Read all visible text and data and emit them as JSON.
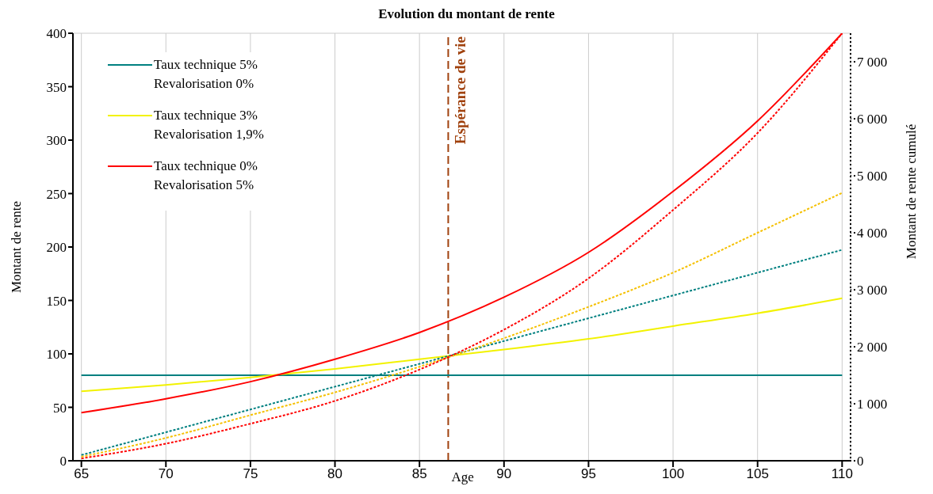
{
  "chart_data": {
    "type": "line",
    "title": "Evolution du montant de rente",
    "xlabel": "Age",
    "ylabel": "Montant de rente",
    "y2label": "Montant de rente cumulé",
    "x": [
      65,
      70,
      75,
      80,
      85,
      90,
      95,
      100,
      105,
      110
    ],
    "series": [
      {
        "name": "Taux technique 5%\nRevalorisation 0%",
        "color": "#008080",
        "line_style": "solid",
        "values": [
          80,
          80,
          80,
          80,
          80,
          80,
          80,
          80,
          80,
          80
        ]
      },
      {
        "name": "Taux technique 3%\nRevalorisation 1,9%",
        "color": "#f2f200",
        "line_style": "solid",
        "values": [
          65,
          71,
          78,
          86,
          95,
          104,
          114,
          126,
          138,
          152
        ]
      },
      {
        "name": "Taux technique 0%\nRevalorisation 5%",
        "color": "#ff0000",
        "line_style": "solid",
        "values": [
          45,
          58,
          74,
          95,
          120,
          153,
          195,
          252,
          318,
          400
        ]
      },
      {
        "color": "#008080",
        "line_style": "dotted",
        "axis": "y2",
        "values": [
          100,
          500,
          900,
          1300,
          1700,
          2100,
          2500,
          2900,
          3300,
          3700
        ]
      },
      {
        "color": "#f5c000",
        "line_style": "dotted",
        "axis": "y2",
        "values": [
          70,
          400,
          800,
          1200,
          1650,
          2150,
          2700,
          3300,
          4000,
          4700
        ]
      },
      {
        "color": "#ff0000",
        "line_style": "dotted",
        "axis": "y2",
        "values": [
          40,
          300,
          650,
          1050,
          1600,
          2300,
          3200,
          4400,
          5750,
          7500
        ]
      }
    ],
    "xlim": [
      64.5,
      110.5
    ],
    "xticks": [
      65,
      70,
      75,
      80,
      85,
      90,
      95,
      100,
      105,
      110
    ],
    "ylim": [
      0,
      400
    ],
    "yticks": [
      0,
      50,
      100,
      150,
      200,
      250,
      300,
      350,
      400
    ],
    "y2lim": [
      0,
      7500
    ],
    "y2ticks": [
      0,
      {
        "value": 1000,
        "label": "1 000"
      },
      {
        "value": 2000,
        "label": "2 000"
      },
      {
        "value": 3000,
        "label": "3 000"
      },
      {
        "value": 4000,
        "label": "4 000"
      },
      {
        "value": 5000,
        "label": "5 000"
      },
      {
        "value": 6000,
        "label": "6 000"
      },
      {
        "value": 7000,
        "label": "7 000"
      }
    ],
    "ref_lines": [
      {
        "axis": "x",
        "value": 86.7,
        "label": "Espérance de vie",
        "color": "#a0410d",
        "line_style": "dashed"
      }
    ],
    "grid": true,
    "legend": "top left",
    "marker": "none"
  }
}
